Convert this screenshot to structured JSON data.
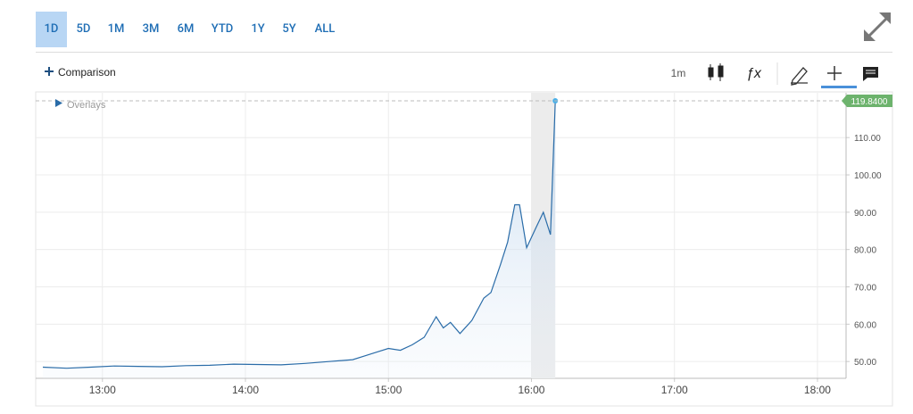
{
  "toolbar": {
    "ranges": [
      "1D",
      "5D",
      "1M",
      "3M",
      "6M",
      "YTD",
      "1Y",
      "5Y",
      "ALL"
    ],
    "selected": 0,
    "comparison": "Comparison",
    "interval": "1m",
    "overlays": "Overlays"
  },
  "chart_data": {
    "type": "line",
    "color": "#2a6ca8",
    "x": [
      "12:35",
      "12:45",
      "12:55",
      "13:05",
      "13:15",
      "13:25",
      "13:35",
      "13:45",
      "13:55",
      "14:05",
      "14:15",
      "14:25",
      "14:35",
      "14:45",
      "14:50",
      "14:55",
      "15:00",
      "15:05",
      "15:10",
      "15:15",
      "15:20",
      "15:23",
      "15:26",
      "15:30",
      "15:35",
      "15:40",
      "15:43",
      "15:47",
      "15:50",
      "15:53",
      "15:55",
      "15:58",
      "16:02",
      "16:05",
      "16:08",
      "16:10"
    ],
    "values": [
      48.5,
      48.2,
      48.5,
      48.8,
      48.7,
      48.6,
      48.9,
      49.0,
      49.3,
      49.2,
      49.1,
      49.5,
      50.0,
      50.5,
      51.5,
      52.5,
      53.5,
      53.0,
      54.5,
      56.5,
      62,
      59,
      60.5,
      57.5,
      61,
      67,
      68.5,
      76,
      82,
      92,
      92,
      80.5,
      86,
      90,
      84,
      119.84
    ],
    "xlim": [
      "12:32",
      "18:12"
    ],
    "xticks": [
      "13:00",
      "14:00",
      "15:00",
      "16:00",
      "17:00",
      "18:00"
    ],
    "ylim": [
      45.5,
      122
    ],
    "yticks": [
      {
        "value": 50,
        "label": "50.00"
      },
      {
        "value": 60,
        "label": "60.00"
      },
      {
        "value": 70,
        "label": "70.00"
      },
      {
        "value": 80,
        "label": "80.00"
      },
      {
        "value": 90,
        "label": "90.00"
      },
      {
        "value": 100,
        "label": "100.00"
      },
      {
        "value": 110,
        "label": "110.00"
      }
    ],
    "last_price": {
      "value": 119.84,
      "label": "119.8400"
    },
    "grid": true
  }
}
